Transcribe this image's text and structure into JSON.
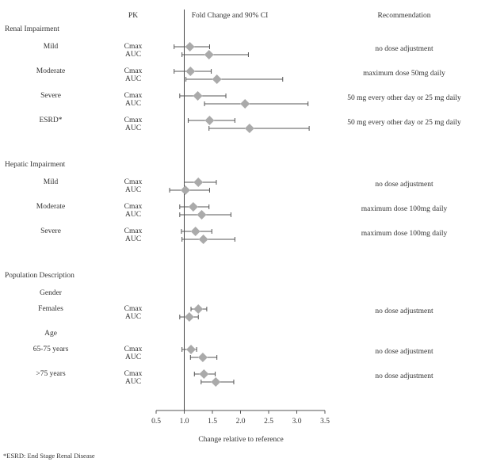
{
  "chart_data": {
    "type": "forest",
    "headers": {
      "pk": "PK",
      "plot": "Fold Change and 90% CI",
      "recommendation": "Recommendation"
    },
    "xlabel": "Change relative to reference",
    "xlim": [
      0.5,
      3.5
    ],
    "xticks": [
      0.5,
      {
        "value": 1,
        "label": "1.0"
      },
      1.5,
      {
        "value": 2,
        "label": "2.0"
      },
      2.5,
      {
        "value": 3,
        "label": "3.0"
      },
      3.5
    ],
    "reference": 1,
    "color": "#aaaaaa",
    "footnote": "*ESRD: End Stage Renal Disease",
    "sections": [
      {
        "title": "Renal Impairment",
        "groups": [
          {
            "label": "Mild",
            "recommendation": "no dose adjustment",
            "params": [
              {
                "name": "Cmax",
                "estimate": 1.1,
                "lo": 0.82,
                "hi": 1.45
              },
              {
                "name": "AUC",
                "estimate": 1.44,
                "lo": 0.96,
                "hi": 2.14
              }
            ]
          },
          {
            "label": "Moderate",
            "recommendation": "maximum dose 50mg daily",
            "params": [
              {
                "name": "Cmax",
                "estimate": 1.11,
                "lo": 0.82,
                "hi": 1.48
              },
              {
                "name": "AUC",
                "estimate": 1.58,
                "lo": 1.03,
                "hi": 2.75
              }
            ]
          },
          {
            "label": "Severe",
            "recommendation": "50 mg every other day or 25 mg daily",
            "params": [
              {
                "name": "Cmax",
                "estimate": 1.24,
                "lo": 0.92,
                "hi": 1.74
              },
              {
                "name": "AUC",
                "estimate": 2.08,
                "lo": 1.36,
                "hi": 3.2
              }
            ]
          },
          {
            "label": "ESRD*",
            "recommendation": "50 mg every other day or 25 mg daily",
            "params": [
              {
                "name": "Cmax",
                "estimate": 1.45,
                "lo": 1.07,
                "hi": 1.9
              },
              {
                "name": "AUC",
                "estimate": 2.16,
                "lo": 1.44,
                "hi": 3.22
              }
            ]
          }
        ]
      },
      {
        "title": "Hepatic Impairment",
        "groups": [
          {
            "label": "Mild",
            "recommendation": "no dose adjustment",
            "params": [
              {
                "name": "Cmax",
                "estimate": 1.25,
                "lo": 1.0,
                "hi": 1.57
              },
              {
                "name": "AUC",
                "estimate": 1.02,
                "lo": 0.74,
                "hi": 1.45
              }
            ]
          },
          {
            "label": "Moderate",
            "recommendation": "maximum dose 100mg daily",
            "params": [
              {
                "name": "Cmax",
                "estimate": 1.16,
                "lo": 0.92,
                "hi": 1.44
              },
              {
                "name": "AUC",
                "estimate": 1.31,
                "lo": 0.92,
                "hi": 1.83
              }
            ]
          },
          {
            "label": "Severe",
            "recommendation": "maximum dose 100mg daily",
            "params": [
              {
                "name": "Cmax",
                "estimate": 1.2,
                "lo": 0.95,
                "hi": 1.49
              },
              {
                "name": "AUC",
                "estimate": 1.34,
                "lo": 0.96,
                "hi": 1.9
              }
            ]
          }
        ]
      },
      {
        "title": "Population Description",
        "groups": [
          {
            "subheading": "Gender",
            "label": "Females",
            "recommendation": "no dose adjustment",
            "params": [
              {
                "name": "Cmax",
                "estimate": 1.25,
                "lo": 1.12,
                "hi": 1.4
              },
              {
                "name": "AUC",
                "estimate": 1.09,
                "lo": 0.92,
                "hi": 1.25
              }
            ]
          },
          {
            "subheading": "Age",
            "label": "65-75 years",
            "recommendation": "no dose adjustment",
            "params": [
              {
                "name": "Cmax",
                "estimate": 1.12,
                "lo": 0.96,
                "hi": 1.22
              },
              {
                "name": "AUC",
                "estimate": 1.33,
                "lo": 1.11,
                "hi": 1.58
              }
            ]
          },
          {
            "label": ">75 years",
            "recommendation": "no dose adjustment",
            "params": [
              {
                "name": "Cmax",
                "estimate": 1.35,
                "lo": 1.18,
                "hi": 1.55
              },
              {
                "name": "AUC",
                "estimate": 1.56,
                "lo": 1.3,
                "hi": 1.88
              }
            ]
          }
        ]
      }
    ]
  }
}
